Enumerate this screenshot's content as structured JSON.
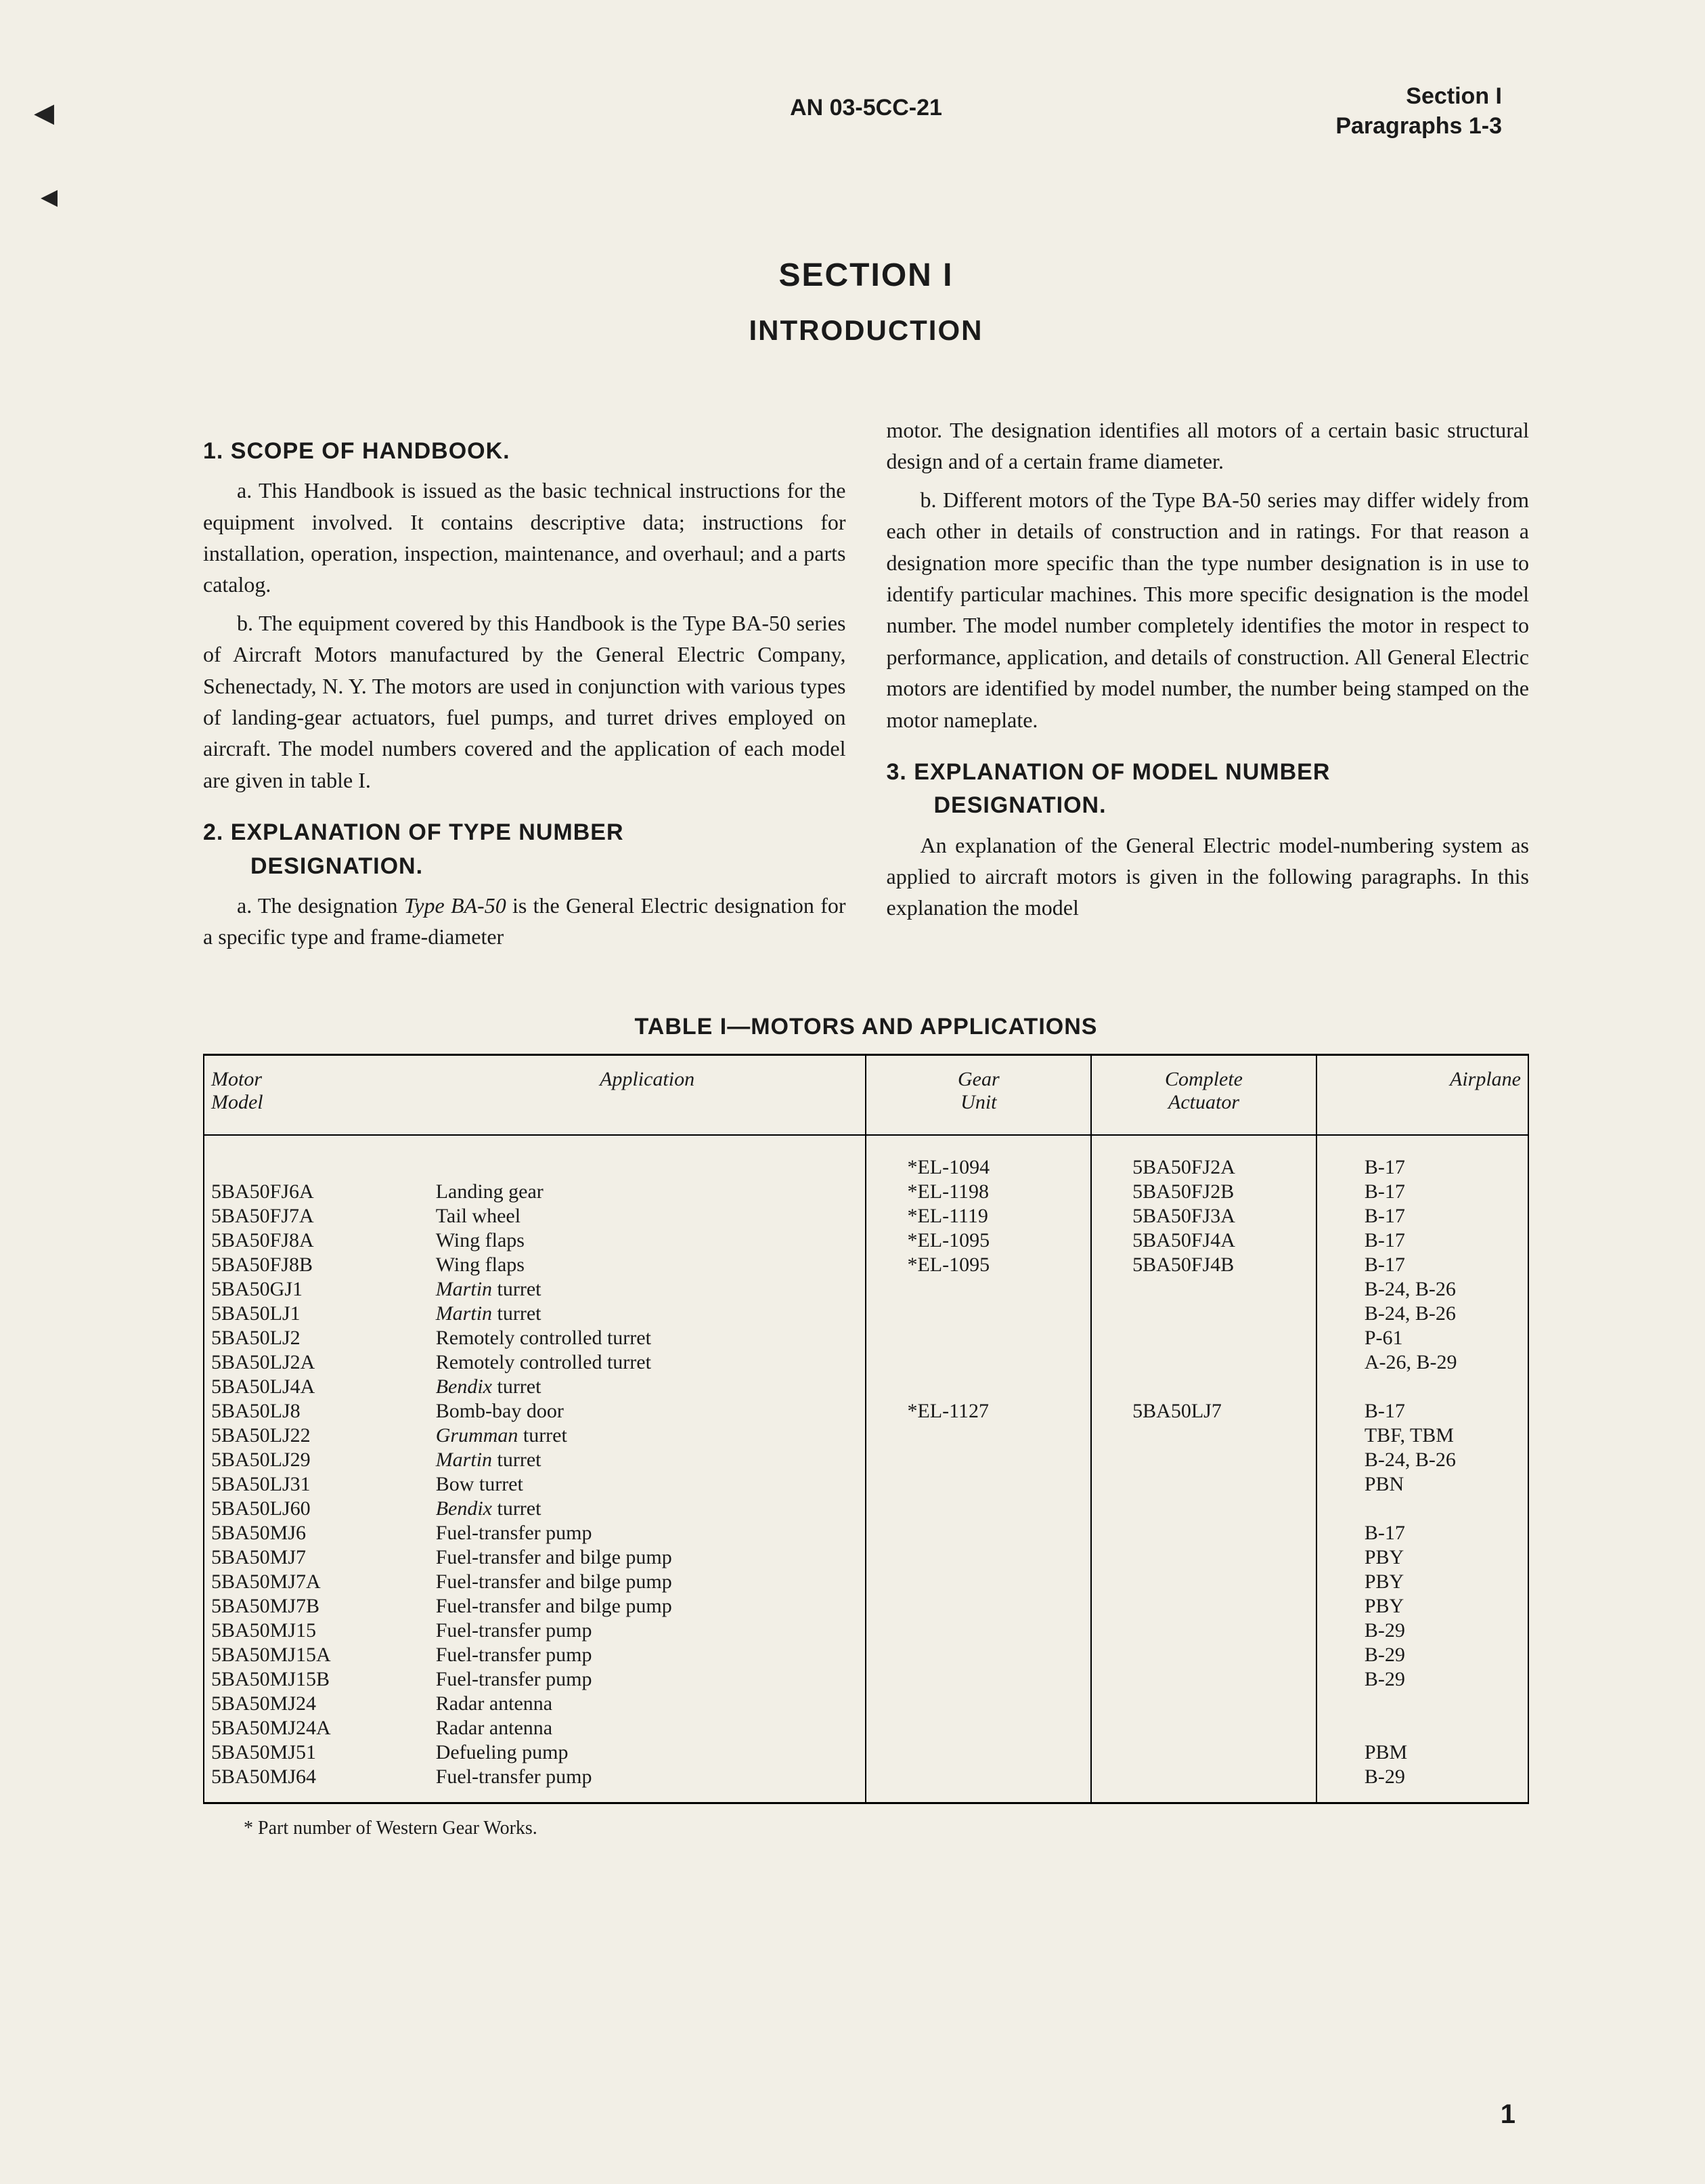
{
  "header": {
    "doc_code": "AN 03-5CC-21",
    "section_label": "Section I",
    "paragraphs_label": "Paragraphs 1-3"
  },
  "section": {
    "number_heading": "SECTION I",
    "title": "INTRODUCTION"
  },
  "body": {
    "h1": "1. SCOPE OF HANDBOOK.",
    "p1a": "a. This Handbook is issued as the basic technical instructions for the equipment involved. It contains descriptive data; instructions for installation, operation, inspection, maintenance, and overhaul; and a parts catalog.",
    "p1b": "b. The equipment covered by this Handbook is the Type BA-50 series of Aircraft Motors manufactured by the General Electric Company, Schenectady, N. Y. The motors are used in conjunction with various types of landing-gear actuators, fuel pumps, and turret drives employed on aircraft. The model numbers covered and the application of each model are given in table I.",
    "h2": "2. EXPLANATION OF TYPE NUMBER",
    "h2b": "DESIGNATION.",
    "p2a_pre": "a. The designation ",
    "p2a_em": "Type BA-50",
    "p2a_post": " is the General Electric designation for a specific type and frame-diameter",
    "p2a_cont": "motor. The designation identifies all motors of a certain basic structural design and of a certain frame diameter.",
    "p2b": "b. Different motors of the Type BA-50 series may differ widely from each other in details of construction and in ratings. For that reason a designation more specific than the type number designation is in use to identify particular machines. This more specific designation is the model number. The model number completely identifies the motor in respect to performance, application, and details of construction. All General Electric motors are identified by model number, the number being stamped on the motor nameplate.",
    "h3": "3. EXPLANATION OF MODEL NUMBER",
    "h3b": "DESIGNATION.",
    "p3": "An explanation of the General Electric model-numbering system as applied to aircraft motors is given in the following paragraphs. In this explanation the model"
  },
  "table": {
    "title": "TABLE I—MOTORS AND APPLICATIONS",
    "columns": {
      "c1a": "Motor",
      "c1b": "Model",
      "c2": "Application",
      "c3a": "Gear",
      "c3b": "Unit",
      "c4a": "Complete",
      "c4b": "Actuator",
      "c5": "Airplane"
    },
    "rows": [
      {
        "model": "",
        "app": "",
        "gear": "*EL-1094",
        "act": "5BA50FJ2A",
        "plane": "B-17"
      },
      {
        "model": "5BA50FJ6A",
        "app": "Landing gear",
        "gear": "*EL-1198",
        "act": "5BA50FJ2B",
        "plane": "B-17"
      },
      {
        "model": "5BA50FJ7A",
        "app": "Tail wheel",
        "gear": "*EL-1119",
        "act": "5BA50FJ3A",
        "plane": "B-17"
      },
      {
        "model": "5BA50FJ8A",
        "app": "Wing flaps",
        "gear": "*EL-1095",
        "act": "5BA50FJ4A",
        "plane": "B-17"
      },
      {
        "model": "5BA50FJ8B",
        "app": "Wing flaps",
        "gear": "*EL-1095",
        "act": "5BA50FJ4B",
        "plane": "B-17"
      },
      {
        "model": "5BA50GJ1",
        "app_em": "Martin",
        "app_post": " turret",
        "gear": "",
        "act": "",
        "plane": "B-24, B-26"
      },
      {
        "model": "5BA50LJ1",
        "app_em": "Martin",
        "app_post": " turret",
        "gear": "",
        "act": "",
        "plane": "B-24, B-26"
      },
      {
        "model": "5BA50LJ2",
        "app": "Remotely controlled turret",
        "gear": "",
        "act": "",
        "plane": "P-61"
      },
      {
        "model": "5BA50LJ2A",
        "app": "Remotely controlled turret",
        "gear": "",
        "act": "",
        "plane": "A-26, B-29"
      },
      {
        "model": "5BA50LJ4A",
        "app_em": "Bendix",
        "app_post": " turret",
        "gear": "",
        "act": "",
        "plane": ""
      },
      {
        "model": "5BA50LJ8",
        "app": "Bomb-bay door",
        "gear": "*EL-1127",
        "act": "5BA50LJ7",
        "plane": "B-17"
      },
      {
        "model": "5BA50LJ22",
        "app_em": "Grumman",
        "app_post": " turret",
        "gear": "",
        "act": "",
        "plane": "TBF, TBM"
      },
      {
        "model": "5BA50LJ29",
        "app_em": "Martin",
        "app_post": " turret",
        "gear": "",
        "act": "",
        "plane": "B-24, B-26"
      },
      {
        "model": "5BA50LJ31",
        "app": "Bow turret",
        "gear": "",
        "act": "",
        "plane": "PBN"
      },
      {
        "model": "5BA50LJ60",
        "app_em": "Bendix",
        "app_post": " turret",
        "gear": "",
        "act": "",
        "plane": ""
      },
      {
        "model": "5BA50MJ6",
        "app": "Fuel-transfer pump",
        "gear": "",
        "act": "",
        "plane": "B-17"
      },
      {
        "model": "5BA50MJ7",
        "app": "Fuel-transfer and bilge pump",
        "gear": "",
        "act": "",
        "plane": "PBY"
      },
      {
        "model": "5BA50MJ7A",
        "app": "Fuel-transfer and bilge pump",
        "gear": "",
        "act": "",
        "plane": "PBY"
      },
      {
        "model": "5BA50MJ7B",
        "app": "Fuel-transfer and bilge pump",
        "gear": "",
        "act": "",
        "plane": "PBY"
      },
      {
        "model": "5BA50MJ15",
        "app": "Fuel-transfer pump",
        "gear": "",
        "act": "",
        "plane": "B-29"
      },
      {
        "model": "5BA50MJ15A",
        "app": "Fuel-transfer pump",
        "gear": "",
        "act": "",
        "plane": "B-29"
      },
      {
        "model": "5BA50MJ15B",
        "app": "Fuel-transfer pump",
        "gear": "",
        "act": "",
        "plane": "B-29"
      },
      {
        "model": "5BA50MJ24",
        "app": "Radar antenna",
        "gear": "",
        "act": "",
        "plane": ""
      },
      {
        "model": "5BA50MJ24A",
        "app": "Radar antenna",
        "gear": "",
        "act": "",
        "plane": ""
      },
      {
        "model": "5BA50MJ51",
        "app": "Defueling pump",
        "gear": "",
        "act": "",
        "plane": "PBM"
      },
      {
        "model": "5BA50MJ64",
        "app": "Fuel-transfer pump",
        "gear": "",
        "act": "",
        "plane": "B-29"
      }
    ]
  },
  "footnote": "* Part number of Western Gear Works.",
  "page_number": "1"
}
